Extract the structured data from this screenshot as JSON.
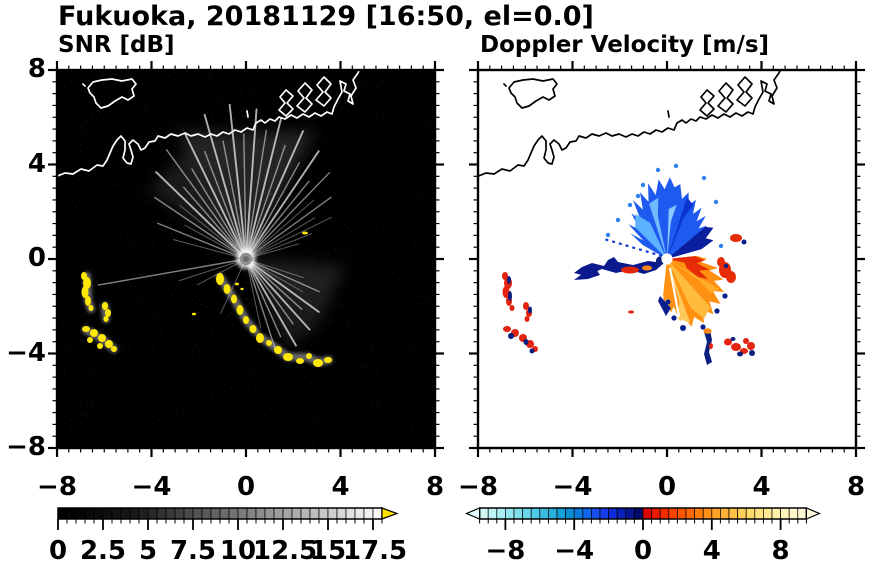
{
  "title": "Fukuoka, 20181129 [16:50, el=0.0]",
  "panels": {
    "left": {
      "subtitle": "SNR [dB]"
    },
    "right": {
      "subtitle": "Doppler Velocity [m/s]"
    }
  },
  "axes": {
    "range": [
      -8,
      8
    ],
    "major_tick_values": [
      -8,
      -4,
      0,
      4,
      8
    ],
    "minor_step": 0.5,
    "x_tick_labels": [
      "−8",
      "−4",
      "0",
      "4",
      "8"
    ],
    "y_tick_labels": [
      "8",
      "4",
      "0",
      "−4",
      "−8"
    ]
  },
  "colorbars": {
    "snr": {
      "label_values": [
        "0",
        "2.5",
        "5",
        "7.5",
        "10",
        "12.5",
        "15",
        "17.5"
      ],
      "label_numeric": [
        0,
        2.5,
        5,
        7.5,
        10,
        12.5,
        15,
        17.5
      ],
      "range": [
        0,
        18
      ],
      "cell_step": 0.5,
      "overflow_arrow_color": "#ffe400",
      "cells": [
        "#000000",
        "#030303",
        "#060606",
        "#090909",
        "#0c0c0c",
        "#0f0f0f",
        "#121212",
        "#151515",
        "#181818",
        "#202020",
        "#282828",
        "#313131",
        "#393939",
        "#414141",
        "#4a4a4a",
        "#525252",
        "#5a5a5a",
        "#636363",
        "#6b6b6b",
        "#737373",
        "#7c7c7c",
        "#848484",
        "#8c8c8c",
        "#959595",
        "#9d9d9d",
        "#a5a5a5",
        "#aeaeae",
        "#b6b6b6",
        "#bebebe",
        "#c7c7c7",
        "#cfcfcf",
        "#d7d7d7",
        "#e0e0e0",
        "#e8e8e8",
        "#f0f0f0",
        "#f9f9f9"
      ]
    },
    "doppler": {
      "label_values": [
        "−8",
        "−4",
        "0",
        "4",
        "8"
      ],
      "label_numeric": [
        -8,
        -4,
        0,
        4,
        8
      ],
      "range": [
        -9.5,
        9.5
      ],
      "cell_step": 0.5,
      "underflow_arrow_color": "#e2fbfa",
      "overflow_arrow_color": "#fcf9dc",
      "cells": [
        "#d2f7f5",
        "#bff3f3",
        "#abeef1",
        "#95e7ef",
        "#7fdfec",
        "#68d5e9",
        "#51cae6",
        "#3bbde2",
        "#27afdd",
        "#15a0d8",
        "#0890d2",
        "#0b7adb",
        "#1264e8",
        "#1750f0",
        "#143cea",
        "#0f2cd8",
        "#0920b8",
        "#041492",
        "#020b6b",
        "#dc0400",
        "#ea1800",
        "#f42c00",
        "#fb4000",
        "#ff5400",
        "#ff6800",
        "#ff7c0a",
        "#ff8f18",
        "#ffa226",
        "#ffb236",
        "#ffc146",
        "#ffce58",
        "#ffd96a",
        "#ffe37e",
        "#ffea92",
        "#fff0a6",
        "#fff4b8",
        "#fff7c8",
        "#fdf8d4"
      ]
    }
  },
  "chart_data": [
    {
      "type": "heatmap",
      "panel": "left",
      "title": "SNR [dB]",
      "xlim": [
        -8,
        8
      ],
      "ylim": [
        -8,
        8
      ],
      "x_ticks": [
        -8,
        -4,
        0,
        4,
        8
      ],
      "y_ticks": [
        -8,
        -4,
        0,
        4,
        8
      ],
      "colorbar": {
        "range": [
          0,
          18
        ],
        "step": 0.5,
        "tick_labels": [
          0,
          2.5,
          5,
          7.5,
          10,
          12.5,
          15,
          17.5
        ],
        "overflow_color": "yellow"
      },
      "description": "Radar at (0,0); bright gray beams fan north and southeast over dark speckle noise; white coastline along the north; saturated yellow echoes (> scale max) form a chain from about (0.3,-0.7) to (3.5,-3.4) plus clusters near (-6.8,-1.2), (-6.4,-2.2) and (-6.2,-2.8), and a small fleck near (2.5,1.1)"
    },
    {
      "type": "heatmap",
      "panel": "right",
      "title": "Doppler Velocity [m/s]",
      "xlim": [
        -8,
        8
      ],
      "ylim": [
        -8,
        8
      ],
      "x_ticks": [
        -8,
        -4,
        0,
        4,
        8
      ],
      "y_ticks": [
        -8,
        -4,
        0,
        4,
        8
      ],
      "colorbar": {
        "range": [
          -9.5,
          9.5
        ],
        "step": 0.5,
        "tick_labels": [
          -8,
          -4,
          0,
          4,
          8
        ]
      },
      "description": "Black coastline on white; negative (light blue to navy) velocity fan north of radar out to ~3 km; positive (red to orange-yellow) fan east-southeast; navy band with red core extends west; red/navy echo pairs near (-6.8,-1.2), (-6.3,-2.6) and around (0.9,-3.3) to (3,-3.4); white dot at radar site (0,0)"
    }
  ]
}
